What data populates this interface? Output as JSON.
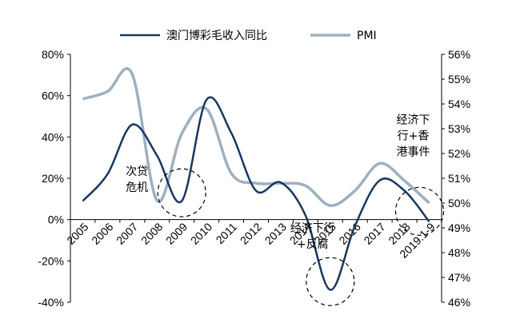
{
  "chart_data": {
    "type": "line",
    "categories": [
      "2005",
      "2006",
      "2007",
      "2008",
      "2009",
      "2010",
      "2011",
      "2012",
      "2013",
      "2014",
      "2015",
      "2016",
      "2017",
      "2018",
      "2019.1-9"
    ],
    "series": [
      {
        "name": "澳门博彩毛收入同比",
        "axis": "left",
        "color": "#17375e",
        "values": [
          9,
          22,
          46,
          31,
          9,
          58,
          42,
          14,
          18,
          2,
          -34,
          -3,
          19,
          14,
          -1
        ]
      },
      {
        "name": "PMI",
        "axis": "right",
        "color": "#9eb0bf",
        "values": [
          54.2,
          54.5,
          55.2,
          50.1,
          52.8,
          53.8,
          51.2,
          50.8,
          50.8,
          50.7,
          49.9,
          50.5,
          51.6,
          50.9,
          50.0
        ]
      }
    ],
    "y_left": {
      "min": -40,
      "max": 80,
      "step": 20,
      "ticks": [
        "-40%",
        "-20%",
        "0%",
        "20%",
        "40%",
        "60%",
        "80%"
      ]
    },
    "y_right": {
      "min": 46,
      "max": 56,
      "step": 1,
      "ticks": [
        "46%",
        "47%",
        "48%",
        "49%",
        "50%",
        "51%",
        "52%",
        "53%",
        "54%",
        "55%",
        "56%"
      ]
    },
    "grid": false,
    "legend": {
      "position": "top"
    },
    "annotations": [
      {
        "lines": [
          "次贷",
          "危机"
        ],
        "index": 4,
        "value": 13,
        "axis": "left"
      },
      {
        "lines": [
          "经济下行",
          "+反腐"
        ],
        "index": 10,
        "value": -30,
        "axis": "left"
      },
      {
        "lines": [
          "经济下",
          "行+香",
          "港事件"
        ],
        "index": 14,
        "value": 4,
        "axis": "left"
      }
    ]
  }
}
